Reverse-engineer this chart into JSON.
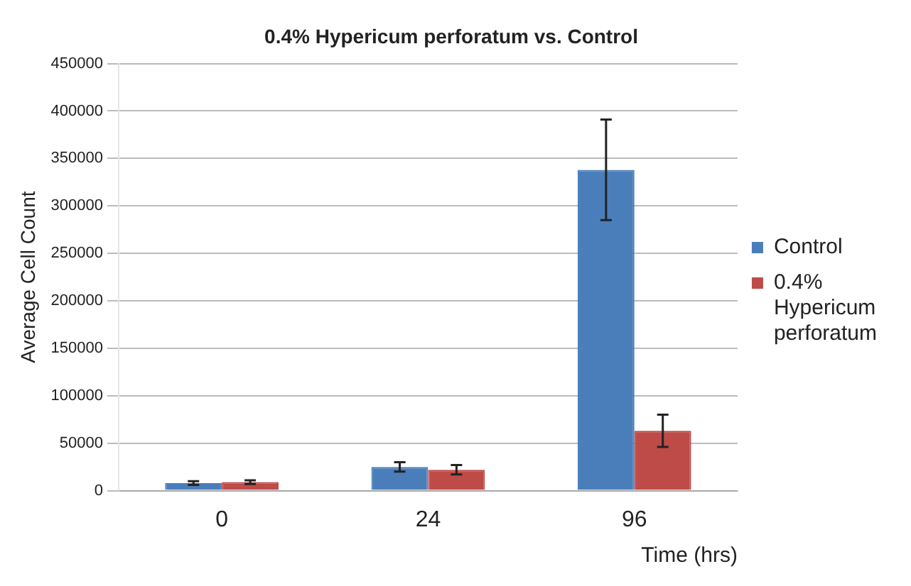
{
  "chart_data": {
    "type": "bar",
    "title": "0.4% Hypericum perforatum vs. Control",
    "xlabel": "Time (hrs)",
    "ylabel": "Average Cell Count",
    "categories": [
      "0",
      "24",
      "96"
    ],
    "series": [
      {
        "name": "Control",
        "color": "#4a7ebb",
        "values": [
          8000,
          25000,
          338000
        ],
        "errors": [
          2000,
          5000,
          53000
        ]
      },
      {
        "name": "0.4% Hypericum perforatum",
        "color": "#be4b48",
        "values": [
          9000,
          22000,
          63000
        ],
        "errors": [
          2000,
          5000,
          17000
        ]
      }
    ],
    "ylim": [
      0,
      450000
    ],
    "yticks": [
      0,
      50000,
      100000,
      150000,
      200000,
      250000,
      300000,
      350000,
      400000,
      450000
    ],
    "grid": "y",
    "legend": "right"
  }
}
